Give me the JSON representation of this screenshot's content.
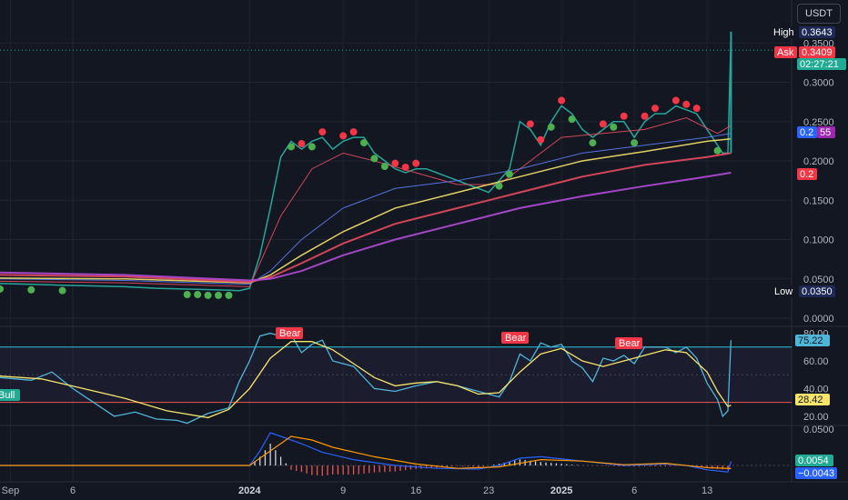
{
  "quote_currency": "USDT",
  "price_tags": {
    "high": {
      "label": "High",
      "value": "0.3643"
    },
    "ask": {
      "label": "Ask",
      "value": "0.3409"
    },
    "countdown": "02:27:21",
    "ma_blue": "0.2",
    "ma_purple_suffix": "55",
    "ma_red": "0.2",
    "low": {
      "label": "Low",
      "value": "0.0350"
    }
  },
  "rsi_tags": {
    "rsi_value": "75.22",
    "rsi_ma_value": "28.42"
  },
  "macd_tags": {
    "macd_value": "0.0054",
    "signal_value": "−0.0043"
  },
  "signals": {
    "bear_label": "Bear",
    "bull_label": "Bull"
  },
  "colors": {
    "background": "#131722",
    "up": "#26a69a",
    "down": "#ef5350",
    "rsi": "#4fb6d8",
    "rsi_ma": "#f6e46b",
    "bear_tag": "#f23645",
    "bull_tag": "#22ab94",
    "bull_dot": "#4caf50",
    "bear_dot": "#f23645"
  },
  "chart_data": [
    {
      "type": "line",
      "panel": "price",
      "x_tick_labels": [
        "Sep",
        "6",
        "2024",
        "9",
        "16",
        "23",
        "2025",
        "6",
        "13"
      ],
      "y_tick_labels": [
        "0.0000",
        "0.0500",
        "0.1000",
        "0.1500",
        "0.2000",
        "0.2500",
        "0.3000",
        "0.3500"
      ],
      "ylim": [
        0,
        0.37
      ],
      "x_range_days": [
        -12,
        58
      ],
      "series": [
        {
          "values": [
            [
              -12,
              0.044
            ],
            [
              -9,
              0.043
            ],
            [
              -6,
              0.042
            ],
            [
              -3,
              0.041
            ],
            [
              0,
              0.04
            ],
            [
              3,
              0.038
            ],
            [
              6,
              0.037
            ],
            [
              9,
              0.036
            ],
            [
              11,
              0.035
            ],
            [
              12,
              0.038
            ],
            [
              13,
              0.08
            ],
            [
              14,
              0.14
            ],
            [
              15,
              0.205
            ],
            [
              16,
              0.225
            ],
            [
              17,
              0.215
            ],
            [
              18,
              0.225
            ],
            [
              19,
              0.23
            ],
            [
              20,
              0.215
            ],
            [
              21,
              0.225
            ],
            [
              22,
              0.23
            ],
            [
              23,
              0.23
            ],
            [
              24,
              0.21
            ],
            [
              25,
              0.2
            ],
            [
              26,
              0.19
            ],
            [
              27,
              0.185
            ],
            [
              28,
              0.19
            ],
            [
              29,
              0.19
            ],
            [
              30,
              0.185
            ],
            [
              31,
              0.18
            ],
            [
              32,
              0.175
            ],
            [
              33,
              0.17
            ],
            [
              34,
              0.165
            ],
            [
              35,
              0.16
            ],
            [
              36,
              0.175
            ],
            [
              37,
              0.19
            ],
            [
              38,
              0.25
            ],
            [
              39,
              0.24
            ],
            [
              40,
              0.22
            ],
            [
              41,
              0.25
            ],
            [
              42,
              0.27
            ],
            [
              43,
              0.26
            ],
            [
              44,
              0.24
            ],
            [
              45,
              0.23
            ],
            [
              46,
              0.24
            ],
            [
              47,
              0.25
            ],
            [
              48,
              0.25
            ],
            [
              49,
              0.23
            ],
            [
              50,
              0.25
            ],
            [
              51,
              0.26
            ],
            [
              52,
              0.26
            ],
            [
              53,
              0.27
            ],
            [
              54,
              0.265
            ],
            [
              55,
              0.26
            ],
            [
              56,
              0.24
            ],
            [
              57,
              0.22
            ],
            [
              57.5,
              0.21
            ],
            [
              58,
              0.21
            ],
            [
              58.3,
              0.36
            ]
          ]
        },
        {
          "values": [
            [
              -12,
              0.047
            ],
            [
              0,
              0.045
            ],
            [
              12,
              0.04
            ],
            [
              13,
              0.07
            ],
            [
              15,
              0.13
            ],
            [
              18,
              0.19
            ],
            [
              21,
              0.21
            ],
            [
              24,
              0.2
            ],
            [
              28,
              0.185
            ],
            [
              32,
              0.17
            ],
            [
              36,
              0.17
            ],
            [
              39,
              0.2
            ],
            [
              42,
              0.23
            ],
            [
              46,
              0.235
            ],
            [
              50,
              0.24
            ],
            [
              54,
              0.255
            ],
            [
              57,
              0.235
            ],
            [
              58.3,
              0.245
            ]
          ]
        },
        {
          "values": [
            [
              -12,
              0.05
            ],
            [
              0,
              0.048
            ],
            [
              12,
              0.043
            ],
            [
              14,
              0.06
            ],
            [
              17,
              0.1
            ],
            [
              21,
              0.14
            ],
            [
              26,
              0.165
            ],
            [
              32,
              0.175
            ],
            [
              38,
              0.19
            ],
            [
              44,
              0.21
            ],
            [
              50,
              0.22
            ],
            [
              56,
              0.23
            ],
            [
              58.3,
              0.235
            ]
          ]
        },
        {
          "values": [
            [
              -12,
              0.051
            ],
            [
              0,
              0.05
            ],
            [
              12,
              0.045
            ],
            [
              14,
              0.055
            ],
            [
              17,
              0.08
            ],
            [
              21,
              0.11
            ],
            [
              26,
              0.14
            ],
            [
              32,
              0.16
            ],
            [
              38,
              0.18
            ],
            [
              44,
              0.2
            ],
            [
              50,
              0.212
            ],
            [
              56,
              0.225
            ],
            [
              58.3,
              0.228
            ]
          ]
        },
        {
          "values": [
            [
              -12,
              0.055
            ],
            [
              0,
              0.053
            ],
            [
              12,
              0.046
            ],
            [
              14,
              0.052
            ],
            [
              17,
              0.07
            ],
            [
              21,
              0.095
            ],
            [
              26,
              0.12
            ],
            [
              32,
              0.14
            ],
            [
              38,
              0.16
            ],
            [
              44,
              0.18
            ],
            [
              50,
              0.195
            ],
            [
              56,
              0.205
            ],
            [
              58.3,
              0.21
            ]
          ]
        },
        {
          "values": [
            [
              -12,
              0.058
            ],
            [
              0,
              0.055
            ],
            [
              12,
              0.048
            ],
            [
              14,
              0.05
            ],
            [
              17,
              0.06
            ],
            [
              21,
              0.08
            ],
            [
              26,
              0.1
            ],
            [
              32,
              0.12
            ],
            [
              38,
              0.14
            ],
            [
              44,
              0.155
            ],
            [
              50,
              0.168
            ],
            [
              56,
              0.18
            ],
            [
              58.3,
              0.185
            ]
          ]
        }
      ]
    },
    {
      "type": "line",
      "panel": "rsi",
      "y_tick_labels": [
        "20.00",
        "40.00",
        "60.00",
        "80.00"
      ],
      "ylim": [
        14,
        83
      ],
      "bands": {
        "upper": 70,
        "lower": 30
      },
      "series": [
        {
          "values": [
            [
              -12,
              48
            ],
            [
              -9,
              46
            ],
            [
              -7,
              52
            ],
            [
              -5,
              40
            ],
            [
              -3,
              30
            ],
            [
              -1,
              20
            ],
            [
              1,
              23
            ],
            [
              3,
              18
            ],
            [
              5,
              17
            ],
            [
              6,
              15
            ],
            [
              8,
              22
            ],
            [
              10,
              26
            ],
            [
              11,
              45
            ],
            [
              12,
              60
            ],
            [
              13,
              78
            ],
            [
              14,
              80
            ],
            [
              15,
              78
            ],
            [
              16,
              79
            ],
            [
              17,
              66
            ],
            [
              18,
              72
            ],
            [
              19,
              75
            ],
            [
              20,
              60
            ],
            [
              22,
              56
            ],
            [
              24,
              40
            ],
            [
              26,
              38
            ],
            [
              28,
              42
            ],
            [
              30,
              45
            ],
            [
              32,
              42
            ],
            [
              34,
              38
            ],
            [
              36,
              34
            ],
            [
              37,
              45
            ],
            [
              38,
              65
            ],
            [
              39,
              60
            ],
            [
              40,
              73
            ],
            [
              41,
              70
            ],
            [
              42,
              72
            ],
            [
              43,
              60
            ],
            [
              44,
              55
            ],
            [
              45,
              45
            ],
            [
              46,
              62
            ],
            [
              47,
              60
            ],
            [
              48,
              64
            ],
            [
              49,
              58
            ],
            [
              50,
              70
            ],
            [
              52,
              70
            ],
            [
              53,
              66
            ],
            [
              54,
              70
            ],
            [
              55,
              62
            ],
            [
              56,
              44
            ],
            [
              57,
              32
            ],
            [
              57.5,
              20
            ],
            [
              58,
              24
            ],
            [
              58.3,
              75
            ]
          ]
        },
        {
          "values": [
            [
              -12,
              49
            ],
            [
              -8,
              47
            ],
            [
              -4,
              40
            ],
            [
              0,
              33
            ],
            [
              4,
              24
            ],
            [
              8,
              19
            ],
            [
              10,
              25
            ],
            [
              12,
              40
            ],
            [
              14,
              62
            ],
            [
              16,
              74
            ],
            [
              18,
              74
            ],
            [
              20,
              68
            ],
            [
              22,
              58
            ],
            [
              24,
              48
            ],
            [
              26,
              42
            ],
            [
              28,
              44
            ],
            [
              30,
              45
            ],
            [
              32,
              42
            ],
            [
              34,
              36
            ],
            [
              36,
              37
            ],
            [
              38,
              52
            ],
            [
              40,
              65
            ],
            [
              42,
              69
            ],
            [
              44,
              60
            ],
            [
              46,
              56
            ],
            [
              48,
              60
            ],
            [
              50,
              64
            ],
            [
              52,
              68
            ],
            [
              54,
              66
            ],
            [
              56,
              52
            ],
            [
              57,
              38
            ],
            [
              58,
              27
            ],
            [
              58.3,
              28
            ]
          ]
        }
      ]
    },
    {
      "type": "bar",
      "panel": "macd",
      "y_tick_labels": [
        "0.0500"
      ],
      "x_range_days": [
        -12,
        58
      ],
      "series": [
        {
          "values": [
            [
              -12,
              0
            ],
            [
              12,
              0
            ],
            [
              13,
              0.02
            ],
            [
              14,
              0.045
            ],
            [
              15,
              0.04
            ],
            [
              17,
              0.03
            ],
            [
              19,
              0.018
            ],
            [
              22,
              0.008
            ],
            [
              26,
              0
            ],
            [
              30,
              -0.004
            ],
            [
              34,
              -0.005
            ],
            [
              36,
              0
            ],
            [
              38,
              0.01
            ],
            [
              40,
              0.012
            ],
            [
              44,
              0.006
            ],
            [
              48,
              0
            ],
            [
              52,
              0.002
            ],
            [
              54,
              0.0
            ],
            [
              56,
              -0.006
            ],
            [
              58,
              -0.009
            ],
            [
              58.3,
              0.0054
            ]
          ]
        },
        {
          "values": [
            [
              -12,
              0
            ],
            [
              12,
              0
            ],
            [
              14,
              0.02
            ],
            [
              16,
              0.04
            ],
            [
              18,
              0.035
            ],
            [
              20,
              0.025
            ],
            [
              24,
              0.012
            ],
            [
              28,
              0.002
            ],
            [
              32,
              -0.004
            ],
            [
              36,
              -0.002
            ],
            [
              40,
              0.008
            ],
            [
              44,
              0.006
            ],
            [
              48,
              0.001
            ],
            [
              52,
              0.003
            ],
            [
              56,
              -0.003
            ],
            [
              58.3,
              -0.0043
            ]
          ]
        }
      ]
    }
  ]
}
